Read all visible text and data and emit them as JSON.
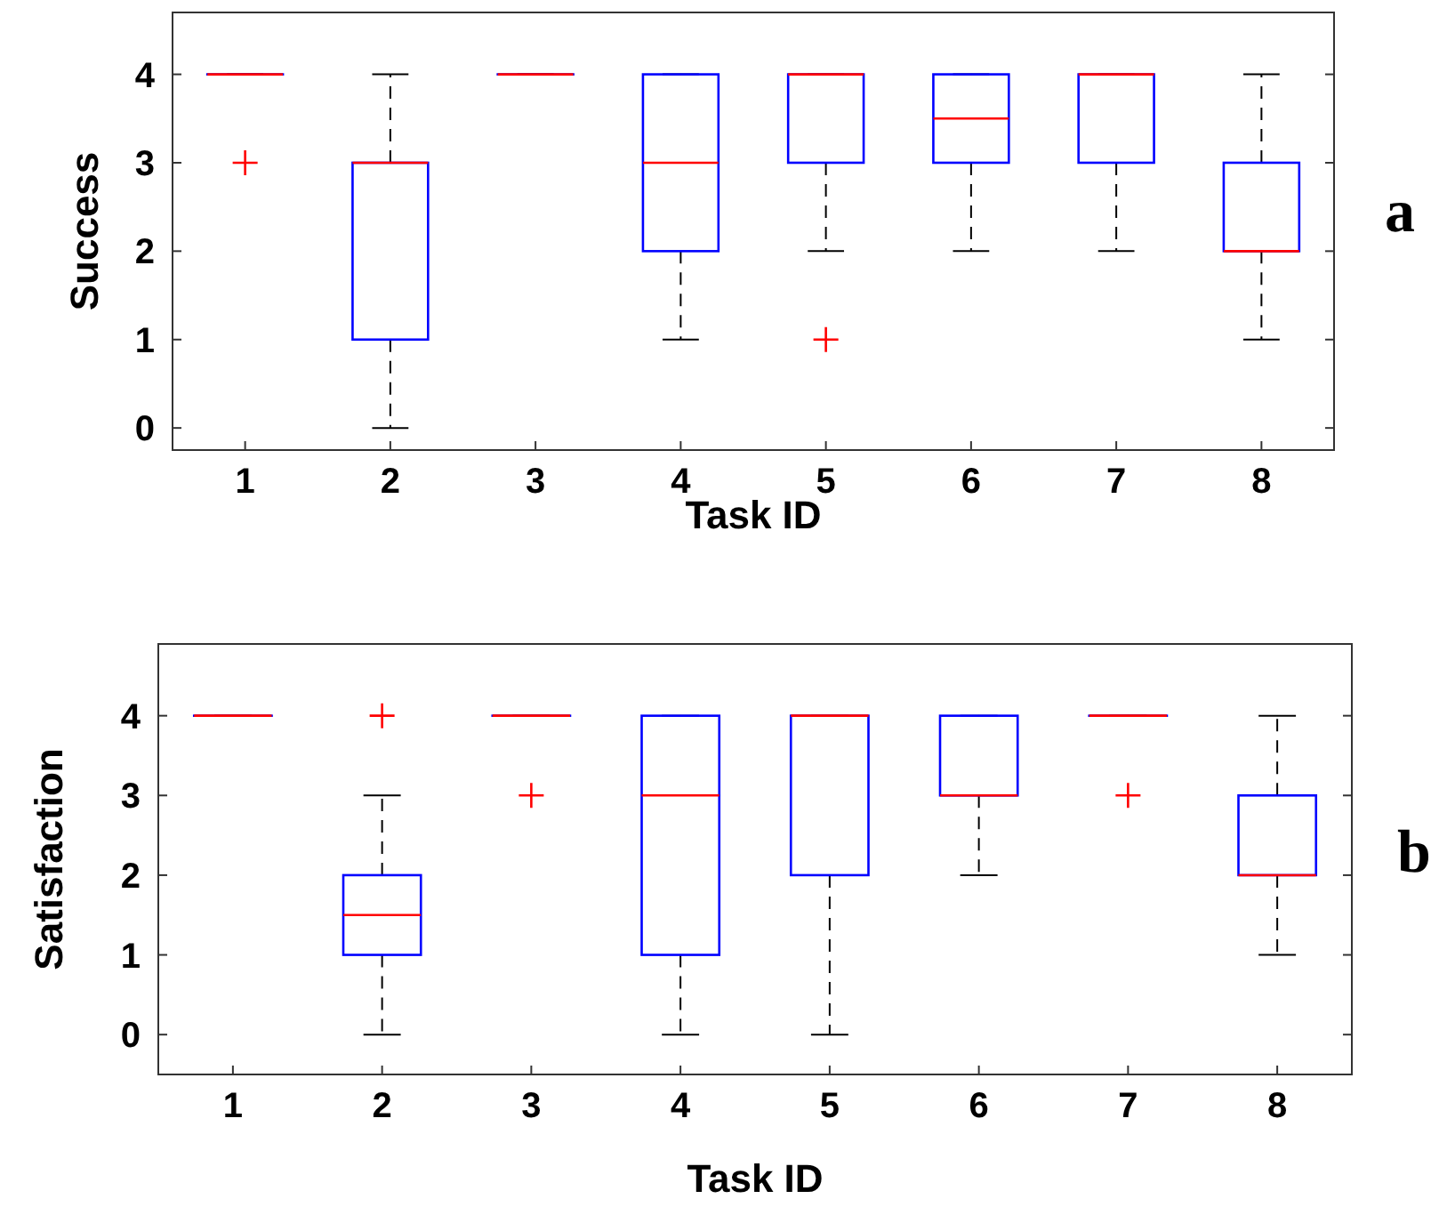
{
  "chart_data": [
    {
      "type": "box",
      "ylabel": "Success",
      "xlabel": "Task ID",
      "annotations": [
        "a"
      ],
      "categories": [
        "1",
        "2",
        "3",
        "4",
        "5",
        "6",
        "7",
        "8"
      ],
      "ylim": [
        -0.25,
        4.7
      ],
      "yticks": [
        0,
        1,
        2,
        3,
        4
      ],
      "grid": false,
      "series": [
        {
          "color": "#0000ff",
          "boxes": [
            {
              "low": 4,
              "q1": 4,
              "median": 4,
              "q3": 4,
              "high": 4,
              "outliers": [
                3
              ]
            },
            {
              "low": 0,
              "q1": 1,
              "median": 3,
              "q3": 3,
              "high": 4
            },
            {
              "low": 4,
              "q1": 4,
              "median": 4,
              "q3": 4,
              "high": 4
            },
            {
              "low": 1,
              "q1": 2,
              "median": 3,
              "q3": 4,
              "high": 4
            },
            {
              "low": 2,
              "q1": 3,
              "median": 4,
              "q3": 4,
              "high": 4,
              "outliers": [
                1
              ]
            },
            {
              "low": 2,
              "q1": 3,
              "median": 3.5,
              "q3": 4,
              "high": 4
            },
            {
              "low": 2,
              "q1": 3,
              "median": 4,
              "q3": 4,
              "high": 4
            },
            {
              "low": 1,
              "q1": 2,
              "median": 2,
              "q3": 3,
              "high": 4
            }
          ]
        }
      ]
    },
    {
      "type": "box",
      "ylabel": "Satisfaction",
      "xlabel": "Task ID",
      "annotations": [
        "b"
      ],
      "categories": [
        "1",
        "2",
        "3",
        "4",
        "5",
        "6",
        "7",
        "8"
      ],
      "ylim": [
        -0.5,
        4.9
      ],
      "yticks": [
        0,
        1,
        2,
        3,
        4
      ],
      "grid": false,
      "series": [
        {
          "color": "#0000ff",
          "boxes": [
            {
              "low": 4,
              "q1": 4,
              "median": 4,
              "q3": 4,
              "high": 4
            },
            {
              "low": 0,
              "q1": 1,
              "median": 1.5,
              "q3": 2,
              "high": 3,
              "outliers": [
                4
              ]
            },
            {
              "low": 4,
              "q1": 4,
              "median": 4,
              "q3": 4,
              "high": 4,
              "outliers": [
                3
              ]
            },
            {
              "low": 0,
              "q1": 1,
              "median": 3,
              "q3": 4,
              "high": 4
            },
            {
              "low": 0,
              "q1": 2,
              "median": 4,
              "q3": 4,
              "high": 4
            },
            {
              "low": 2,
              "q1": 3,
              "median": 3,
              "q3": 4,
              "high": 4
            },
            {
              "low": 4,
              "q1": 4,
              "median": 4,
              "q3": 4,
              "high": 4,
              "outliers": [
                3
              ]
            },
            {
              "low": 1,
              "q1": 2,
              "median": 2,
              "q3": 3,
              "high": 4
            }
          ]
        }
      ]
    }
  ]
}
